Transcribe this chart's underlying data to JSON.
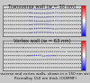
{
  "title1": "Transverse wall (w = 30 nm)",
  "title2": "Vortex wall (w = 63 nm)",
  "caption_line1": "Transverse and vortex walls, shown in a 150 nm strip of",
  "caption_line2": "Permalloy 150 nm thick (OOMMF)",
  "bg_color": "#c8c8c8",
  "panel_bg": "#d8d8d8",
  "border_color": "#555555",
  "nx": 38,
  "ny": 7,
  "font_size_title": 3.8,
  "font_size_caption": 3.0,
  "arrow_lw": 0.25,
  "arrow_scale": 0.018
}
